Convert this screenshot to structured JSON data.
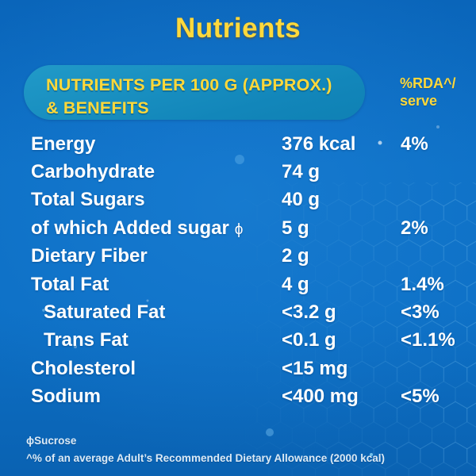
{
  "title": "Nutrients",
  "colors": {
    "background": "#0d6ec5",
    "header_pill": "#1689bd",
    "accent_yellow": "#ffd93c",
    "text_white": "#ffffff"
  },
  "table": {
    "header": {
      "title_line1": "NUTRIENTS PER 100 G (APPROX.)",
      "title_line2": "& BENEFITS",
      "rda_line1": "%RDA^/",
      "rda_line2": "serve"
    },
    "rows": [
      {
        "label": "Energy",
        "value": "376 kcal",
        "rda": "4%",
        "indent": false,
        "marker": ""
      },
      {
        "label": "Carbohydrate",
        "value": "74 g",
        "rda": "",
        "indent": false,
        "marker": ""
      },
      {
        "label": "Total Sugars",
        "value": "40 g",
        "rda": "",
        "indent": false,
        "marker": ""
      },
      {
        "label": "of which Added sugar",
        "value": "5 g",
        "rda": "2%",
        "indent": false,
        "marker": "ϕ"
      },
      {
        "label": "Dietary Fiber",
        "value": "2 g",
        "rda": "",
        "indent": false,
        "marker": ""
      },
      {
        "label": "Total Fat",
        "value": "4 g",
        "rda": "1.4%",
        "indent": false,
        "marker": ""
      },
      {
        "label": "Saturated Fat",
        "value": "<3.2 g",
        "rda": "<3%",
        "indent": true,
        "marker": ""
      },
      {
        "label": "Trans Fat",
        "value": "<0.1 g",
        "rda": "<1.1%",
        "indent": true,
        "marker": ""
      },
      {
        "label": "Cholesterol",
        "value": "<15 mg",
        "rda": "",
        "indent": false,
        "marker": ""
      },
      {
        "label": "Sodium",
        "value": "<400 mg",
        "rda": "<5%",
        "indent": false,
        "marker": ""
      }
    ]
  },
  "footnotes": [
    "ϕSucrose",
    "^% of an average Adult’s Recommended Dietary Allowance (2000 kcal)"
  ]
}
